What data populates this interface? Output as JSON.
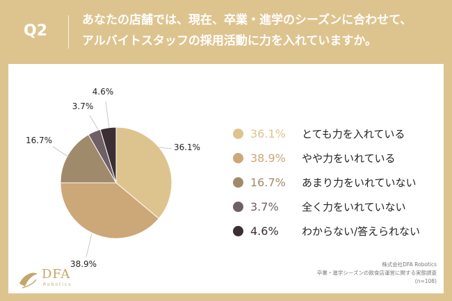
{
  "header": {
    "q_label": "Q2",
    "question_line1": "あなたの店舗では、現在、卒業・進学のシーズンに合わせて、",
    "question_line2": "アルバイトスタッフの採用活動に力を入れていますか。"
  },
  "chart_data": {
    "type": "pie",
    "start": "12 o'clock, clockwise",
    "slices": [
      {
        "label": "とても力を入れている",
        "value": 36.1,
        "value_text": "36.1%",
        "color": "#ddc48f"
      },
      {
        "label": "やや力をいれている",
        "value": 38.9,
        "value_text": "38.9%",
        "color": "#cca777"
      },
      {
        "label": "あまり力をいれていない",
        "value": 16.7,
        "value_text": "16.7%",
        "color": "#a08a6c"
      },
      {
        "label": "全く力をいれていない",
        "value": 3.7,
        "value_text": "3.7%",
        "color": "#6e6064"
      },
      {
        "label": "わからない/答えられない",
        "value": 4.6,
        "value_text": "4.6%",
        "color": "#3b2f33"
      }
    ]
  },
  "footer": {
    "line1": "株式会社DFA Robotics",
    "line2": "卒業・進学シーズンの飲食店運営に関する実態調査",
    "line3": "(n=108)"
  },
  "logo": {
    "text": "DFA",
    "sub": "Robotics"
  }
}
